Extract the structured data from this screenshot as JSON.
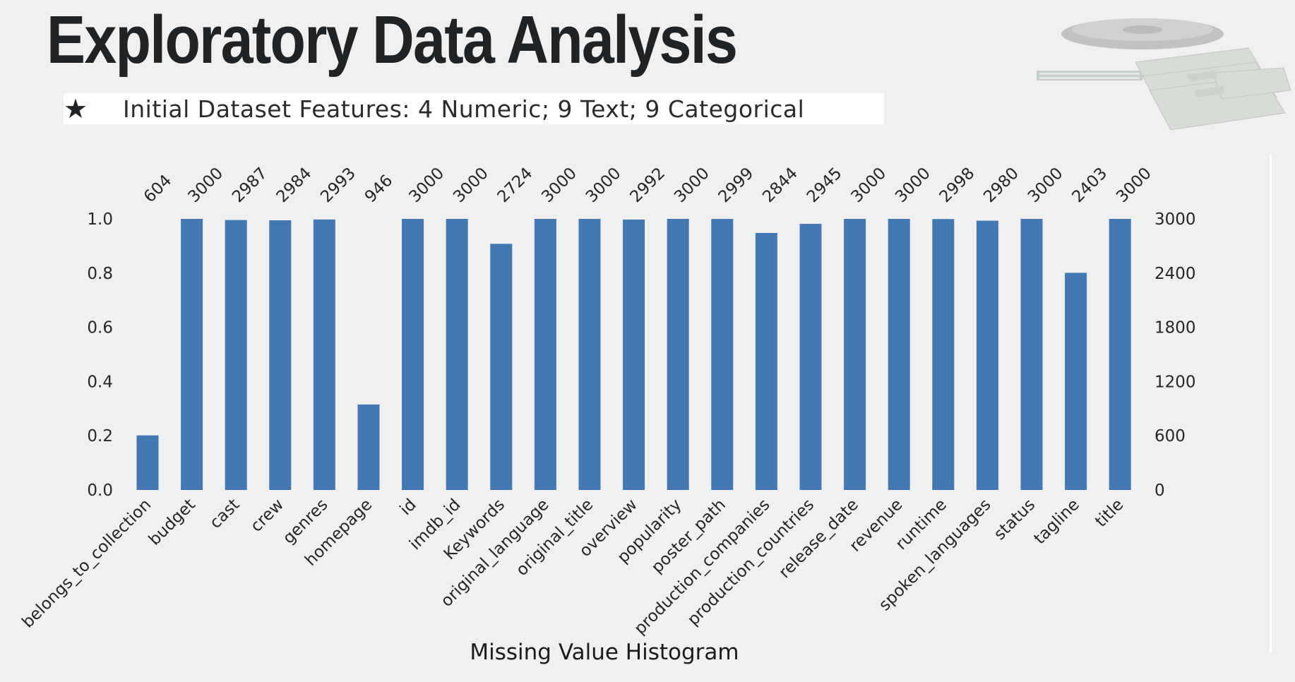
{
  "page": {
    "title": "Exploratory Data Analysis",
    "star_glyph": "★",
    "subtitle": "Initial Dataset Features:  4 Numeric;  9 Text;  9 Categorical",
    "caption": "Missing Value Histogram",
    "decorative_image": "film-reel-and-cash-icon"
  },
  "chart_data": {
    "type": "bar",
    "title": "",
    "xlabel": "",
    "ylabel": "",
    "categories": [
      "belongs_to_collection",
      "budget",
      "cast",
      "crew",
      "genres",
      "homepage",
      "id",
      "imdb_id",
      "Keywords",
      "original_language",
      "original_title",
      "overview",
      "popularity",
      "poster_path",
      "production_companies",
      "production_countries",
      "release_date",
      "revenue",
      "runtime",
      "spoken_languages",
      "status",
      "tagline",
      "title"
    ],
    "values": [
      604,
      3000,
      2987,
      2984,
      2993,
      946,
      3000,
      3000,
      2724,
      3000,
      3000,
      2992,
      3000,
      2999,
      2844,
      2945,
      3000,
      3000,
      2998,
      2980,
      3000,
      2403,
      3000
    ],
    "value_labels": [
      "604",
      "3000",
      "2987",
      "2984",
      "2993",
      "946",
      "3000",
      "3000",
      "2724",
      "3000",
      "3000",
      "2992",
      "3000",
      "2999",
      "2844",
      "2945",
      "3000",
      "3000",
      "2998",
      "2980",
      "3000",
      "2403",
      "3000"
    ],
    "total": 3000,
    "left_axis": {
      "ylim": [
        0,
        1
      ],
      "ticks": [
        "0.0",
        "0.2",
        "0.4",
        "0.6",
        "0.8",
        "1.0"
      ]
    },
    "right_axis": {
      "ylim": [
        0,
        3000
      ],
      "ticks": [
        "0",
        "600",
        "1200",
        "1800",
        "2400",
        "3000"
      ]
    },
    "grid": false,
    "bar_color": "#4378b3"
  }
}
